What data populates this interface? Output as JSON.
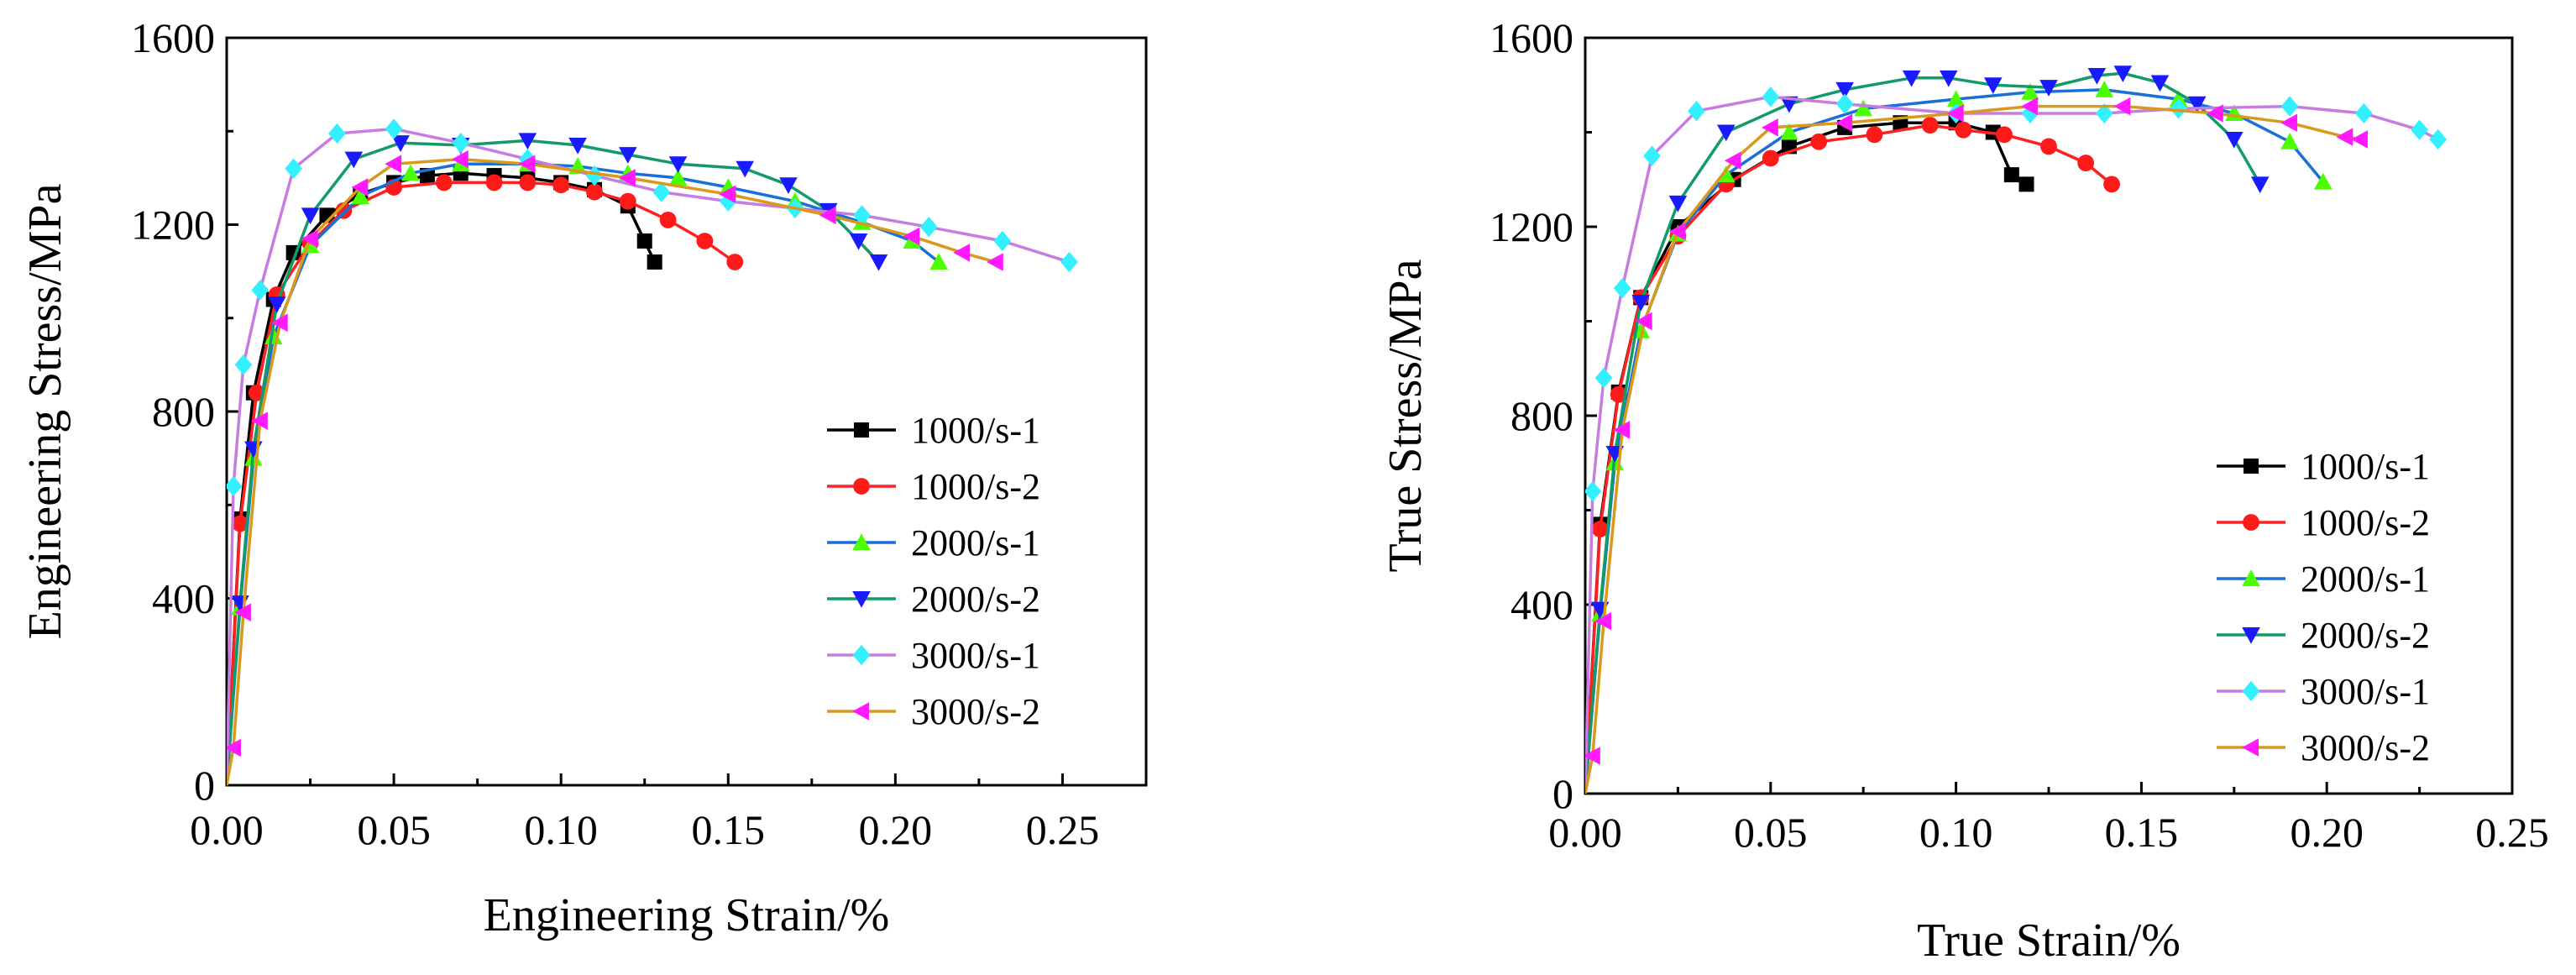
{
  "colors": {
    "1000/s-1": "#000000",
    "1000/s-2": "#ff2020",
    "2000/s-1": "#1a6fd8",
    "2000/s-2": "#129a6a",
    "3000/s-1": "#c77de0",
    "3000/s-2": "#d89a1c"
  },
  "marker_colors": {
    "1000/s-1": "#000000",
    "1000/s-2": "#ff1a1a",
    "2000/s-1": "#4cff00",
    "2000/s-2": "#1a1aff",
    "3000/s-1": "#33f0ff",
    "3000/s-2": "#ff1aff"
  },
  "chart_data": [
    {
      "type": "line",
      "title": "",
      "xlabel": "Engineering Strain/%",
      "ylabel": "Engineering Stress/MPa",
      "xlim": [
        0,
        0.275
      ],
      "ylim": [
        0,
        1600
      ],
      "xticks": [
        "0.00",
        "0.05",
        "0.10",
        "0.15",
        "0.20",
        "0.25"
      ],
      "yticks": [
        "0",
        "400",
        "800",
        "1200",
        "1600"
      ],
      "legend_position": "bottom-right",
      "series": [
        {
          "name": "1000/s-1",
          "marker": "square",
          "x": [
            0,
            0.004,
            0.008,
            0.014,
            0.02,
            0.03,
            0.04,
            0.05,
            0.06,
            0.07,
            0.08,
            0.09,
            0.1,
            0.11,
            0.12,
            0.125,
            0.128
          ],
          "y": [
            0,
            570,
            840,
            1040,
            1140,
            1220,
            1265,
            1290,
            1305,
            1310,
            1305,
            1300,
            1290,
            1275,
            1240,
            1165,
            1120
          ]
        },
        {
          "name": "1000/s-2",
          "marker": "circle",
          "x": [
            0,
            0.004,
            0.009,
            0.015,
            0.025,
            0.035,
            0.05,
            0.065,
            0.08,
            0.09,
            0.1,
            0.11,
            0.12,
            0.132,
            0.143,
            0.152
          ],
          "y": [
            0,
            560,
            840,
            1050,
            1160,
            1230,
            1280,
            1290,
            1290,
            1290,
            1285,
            1270,
            1250,
            1210,
            1165,
            1120
          ]
        },
        {
          "name": "2000/s-1",
          "marker": "triangle-up",
          "x": [
            0,
            0.004,
            0.008,
            0.014,
            0.025,
            0.04,
            0.055,
            0.07,
            0.09,
            0.105,
            0.12,
            0.135,
            0.15,
            0.17,
            0.19,
            0.205,
            0.213
          ],
          "y": [
            0,
            380,
            700,
            960,
            1155,
            1260,
            1310,
            1330,
            1330,
            1325,
            1310,
            1300,
            1280,
            1250,
            1205,
            1165,
            1120
          ]
        },
        {
          "name": "2000/s-2",
          "marker": "triangle-down",
          "x": [
            0,
            0.004,
            0.008,
            0.015,
            0.025,
            0.038,
            0.052,
            0.07,
            0.09,
            0.105,
            0.12,
            0.135,
            0.155,
            0.168,
            0.18,
            0.189,
            0.195
          ],
          "y": [
            0,
            390,
            720,
            1030,
            1220,
            1340,
            1375,
            1370,
            1380,
            1370,
            1350,
            1330,
            1320,
            1285,
            1230,
            1165,
            1120
          ]
        },
        {
          "name": "3000/s-1",
          "marker": "diamond",
          "x": [
            0,
            0.002,
            0.005,
            0.01,
            0.02,
            0.033,
            0.05,
            0.07,
            0.09,
            0.11,
            0.13,
            0.15,
            0.17,
            0.19,
            0.21,
            0.232,
            0.252
          ],
          "y": [
            0,
            640,
            900,
            1060,
            1320,
            1395,
            1405,
            1375,
            1340,
            1305,
            1270,
            1250,
            1235,
            1220,
            1195,
            1165,
            1120
          ]
        },
        {
          "name": "3000/s-2",
          "marker": "triangle-left",
          "x": [
            0,
            0.002,
            0.005,
            0.01,
            0.016,
            0.025,
            0.04,
            0.05,
            0.07,
            0.09,
            0.12,
            0.15,
            0.18,
            0.205,
            0.22,
            0.23
          ],
          "y": [
            0,
            80,
            370,
            780,
            990,
            1170,
            1280,
            1330,
            1340,
            1330,
            1300,
            1265,
            1220,
            1175,
            1140,
            1120
          ]
        }
      ]
    },
    {
      "type": "line",
      "title": "",
      "xlabel": "True Strain/%",
      "ylabel": "True Stress/MPa",
      "xlim": [
        0,
        0.25
      ],
      "ylim": [
        0,
        1600
      ],
      "xticks": [
        "0.00",
        "0.05",
        "0.10",
        "0.15",
        "0.20",
        "0.25"
      ],
      "yticks": [
        "0",
        "400",
        "800",
        "1200",
        "1600"
      ],
      "legend_position": "bottom-right",
      "series": [
        {
          "name": "1000/s-1",
          "marker": "square",
          "x": [
            0,
            0.004,
            0.009,
            0.015,
            0.025,
            0.04,
            0.055,
            0.07,
            0.085,
            0.1,
            0.11,
            0.115,
            0.119
          ],
          "y": [
            0,
            570,
            850,
            1050,
            1200,
            1300,
            1370,
            1410,
            1420,
            1420,
            1400,
            1310,
            1290
          ]
        },
        {
          "name": "1000/s-2",
          "marker": "circle",
          "x": [
            0,
            0.004,
            0.009,
            0.015,
            0.025,
            0.038,
            0.05,
            0.063,
            0.078,
            0.093,
            0.102,
            0.113,
            0.125,
            0.135,
            0.142
          ],
          "y": [
            0,
            560,
            845,
            1050,
            1180,
            1290,
            1345,
            1380,
            1395,
            1415,
            1405,
            1395,
            1370,
            1335,
            1290
          ]
        },
        {
          "name": "2000/s-1",
          "marker": "triangle-up",
          "x": [
            0,
            0.004,
            0.008,
            0.015,
            0.025,
            0.038,
            0.055,
            0.075,
            0.1,
            0.12,
            0.14,
            0.16,
            0.175,
            0.19,
            0.199
          ],
          "y": [
            0,
            380,
            700,
            980,
            1185,
            1310,
            1400,
            1450,
            1470,
            1485,
            1490,
            1470,
            1440,
            1380,
            1295
          ]
        },
        {
          "name": "2000/s-2",
          "marker": "triangle-down",
          "x": [
            0,
            0.004,
            0.008,
            0.015,
            0.025,
            0.038,
            0.055,
            0.07,
            0.088,
            0.098,
            0.11,
            0.125,
            0.138,
            0.145,
            0.155,
            0.165,
            0.175,
            0.182
          ],
          "y": [
            0,
            390,
            720,
            1040,
            1250,
            1400,
            1460,
            1490,
            1515,
            1515,
            1500,
            1495,
            1520,
            1525,
            1505,
            1460,
            1385,
            1290
          ]
        },
        {
          "name": "3000/s-1",
          "marker": "diamond",
          "x": [
            0,
            0.002,
            0.005,
            0.01,
            0.018,
            0.03,
            0.05,
            0.07,
            0.1,
            0.12,
            0.14,
            0.16,
            0.19,
            0.21,
            0.225,
            0.23
          ],
          "y": [
            0,
            640,
            880,
            1070,
            1350,
            1445,
            1475,
            1460,
            1440,
            1440,
            1440,
            1450,
            1455,
            1440,
            1405,
            1385
          ]
        },
        {
          "name": "3000/s-2",
          "marker": "triangle-left",
          "x": [
            0,
            0.002,
            0.005,
            0.01,
            0.016,
            0.025,
            0.04,
            0.05,
            0.07,
            0.1,
            0.12,
            0.145,
            0.17,
            0.19,
            0.205,
            0.209
          ],
          "y": [
            0,
            80,
            365,
            770,
            1000,
            1190,
            1340,
            1410,
            1420,
            1440,
            1455,
            1455,
            1440,
            1420,
            1390,
            1385
          ]
        }
      ]
    }
  ]
}
